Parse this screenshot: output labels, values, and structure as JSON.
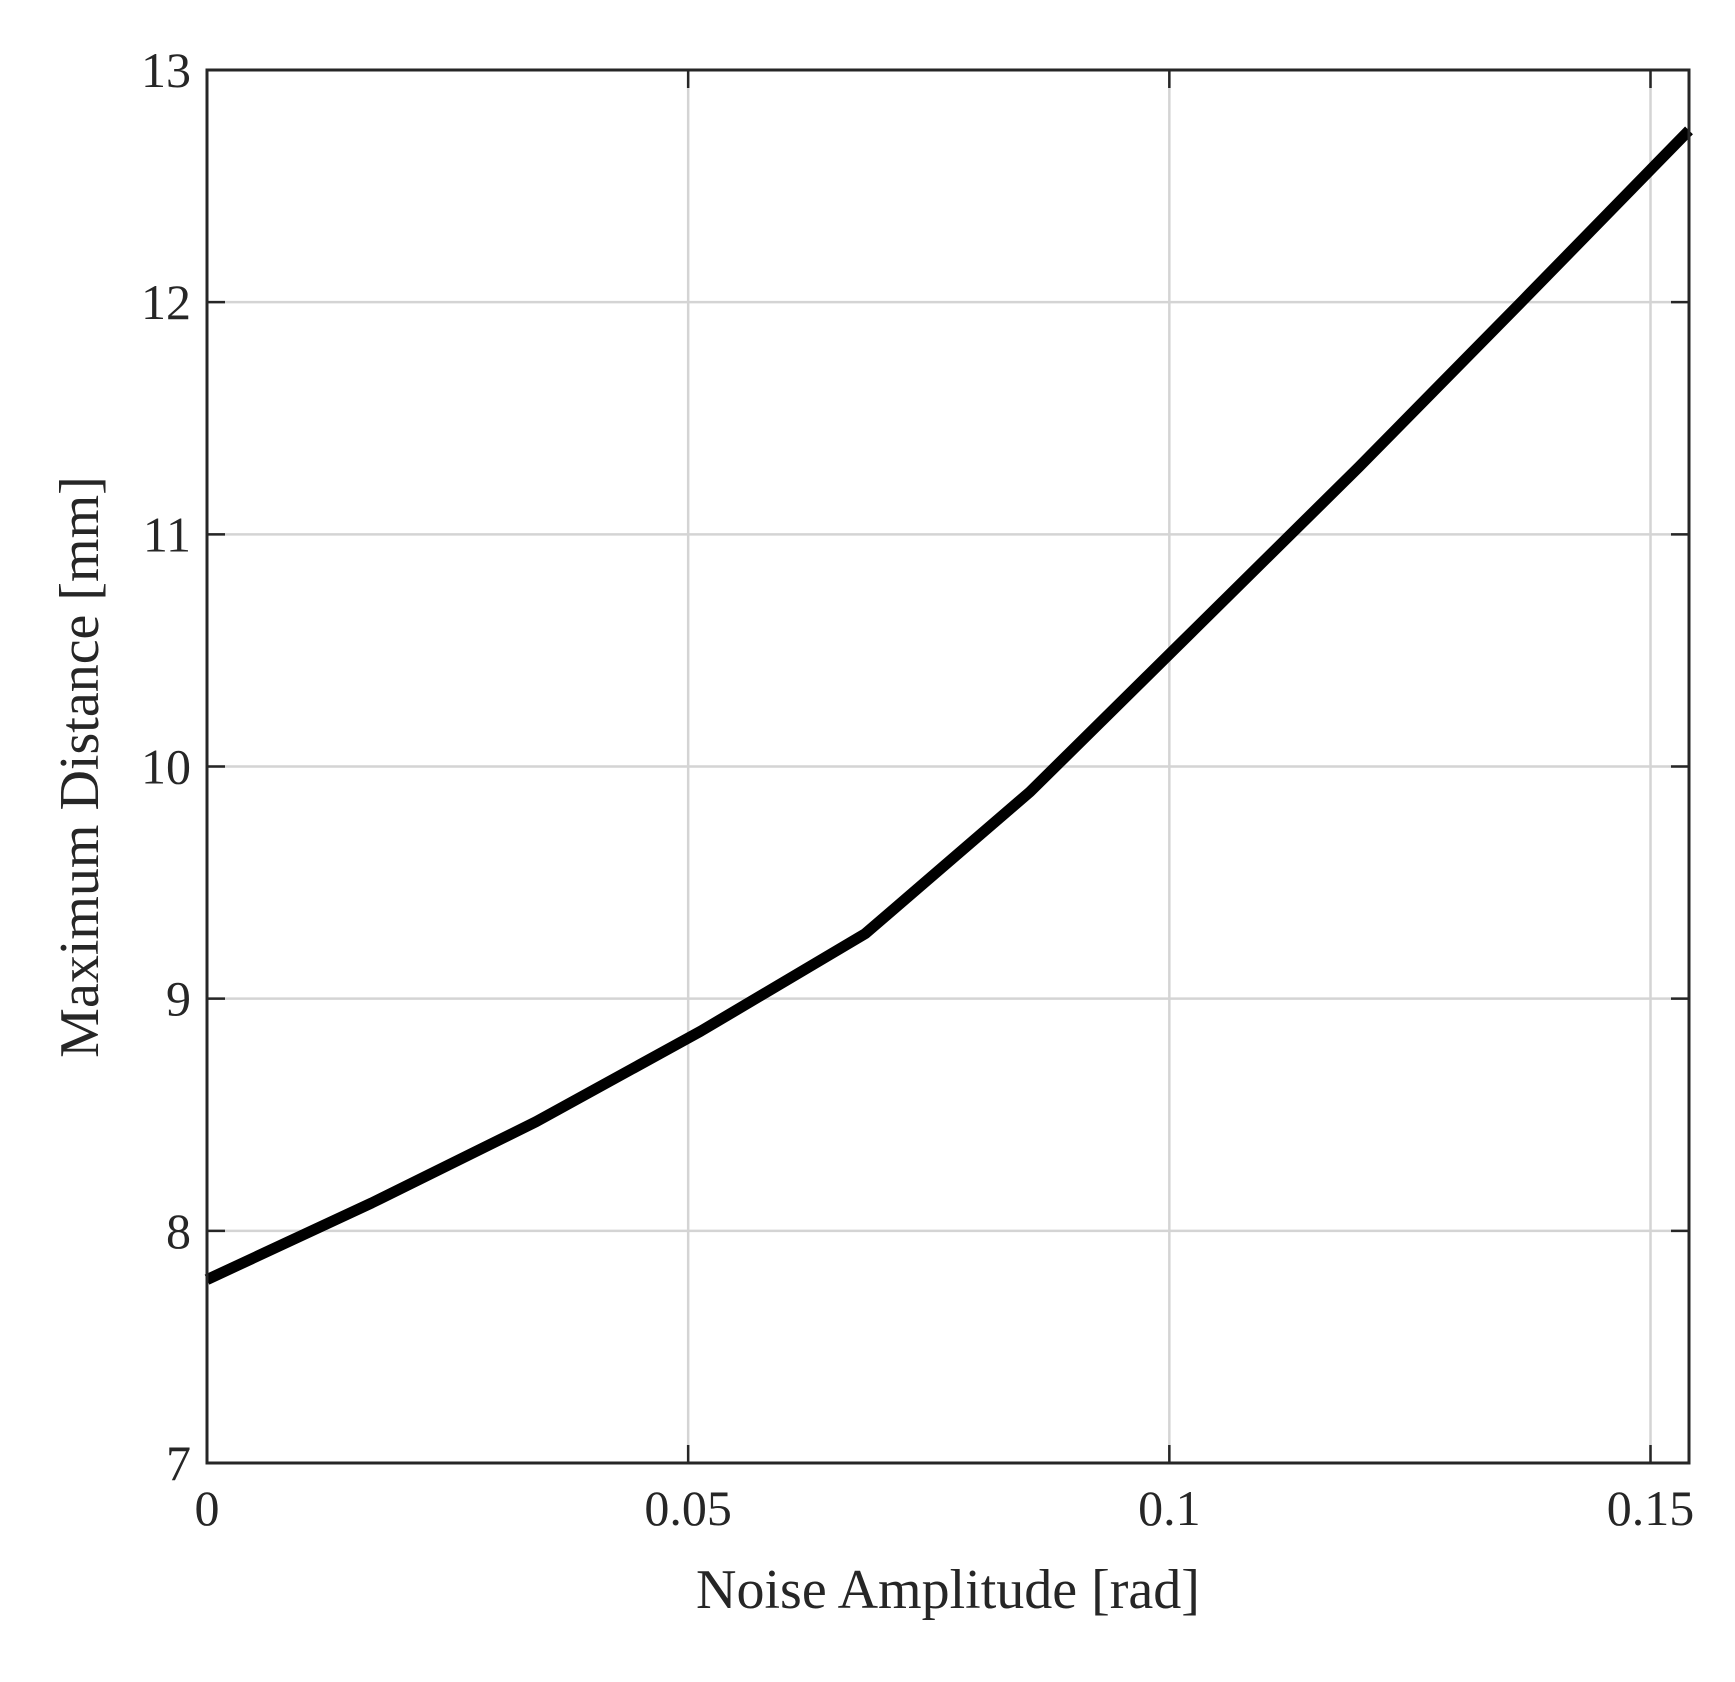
{
  "chart_data": {
    "type": "line",
    "title": "",
    "xlabel": "Noise Amplitude [rad]",
    "ylabel": "Maximum Distance [mm]",
    "xlim": [
      0,
      0.154
    ],
    "ylim": [
      7,
      13
    ],
    "x_ticks": [
      0,
      0.05,
      0.1,
      0.15
    ],
    "x_tick_labels": [
      "0",
      "0.05",
      "0.1",
      "0.15"
    ],
    "y_ticks": [
      7,
      8,
      9,
      10,
      11,
      12,
      13
    ],
    "y_tick_labels": [
      "7",
      "8",
      "9",
      "10",
      "11",
      "12",
      "13"
    ],
    "grid": true,
    "legend": "none",
    "series": [
      {
        "color": "#000000",
        "x": [
          0,
          0.0171,
          0.0342,
          0.0513,
          0.0684,
          0.0855,
          0.1026,
          0.1197,
          0.1368,
          0.154
        ],
        "y": [
          7.79,
          8.12,
          8.47,
          8.86,
          9.28,
          9.89,
          10.59,
          11.29,
          12.01,
          12.74
        ]
      }
    ]
  }
}
